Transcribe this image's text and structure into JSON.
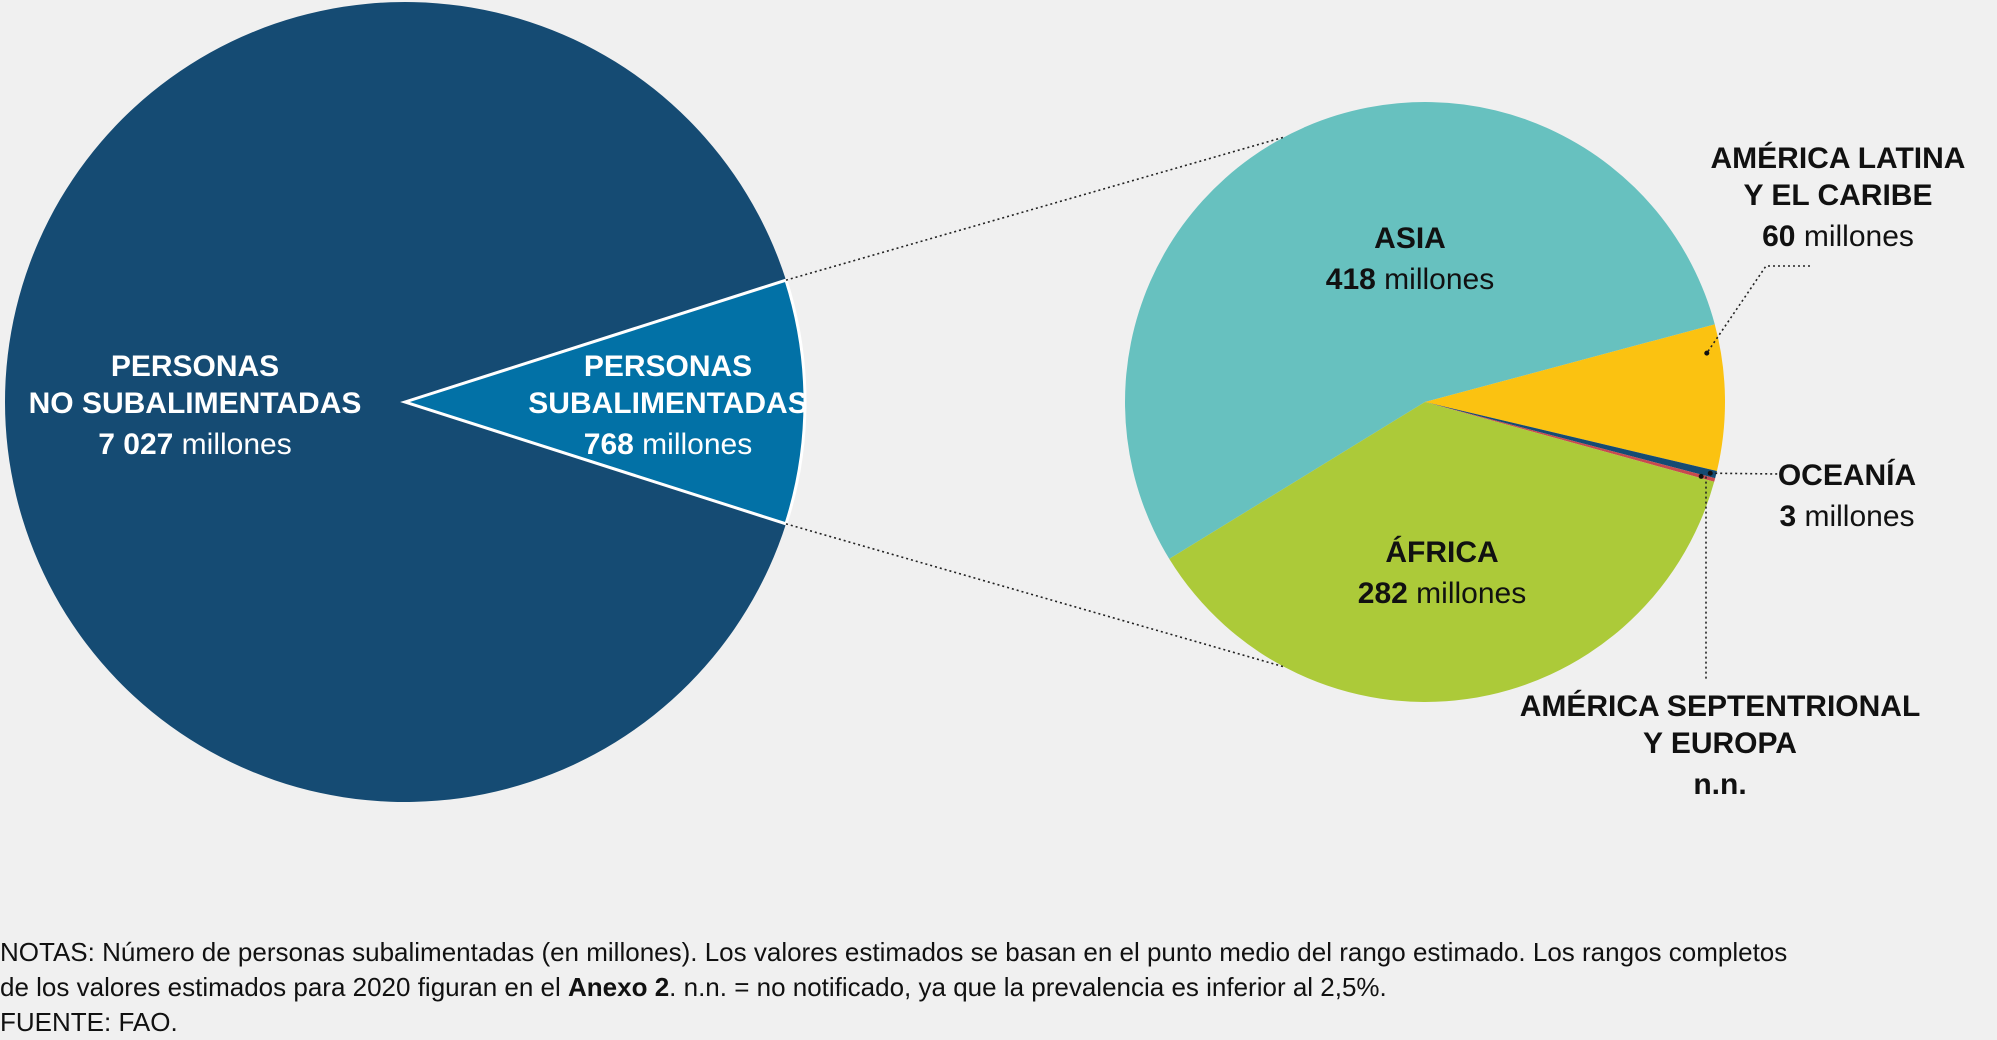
{
  "chart_data": [
    {
      "type": "pie",
      "slices": [
        {
          "label_lines": [
            "PERSONAS",
            "NO SUBALIMENTADAS"
          ],
          "value": 7027,
          "value_text": "7 027",
          "unit": "millones",
          "color": "#154b73"
        },
        {
          "label_lines": [
            "PERSONAS",
            "SUBALIMENTADAS"
          ],
          "value": 768,
          "value_text": "768",
          "unit": "millones",
          "color": "#0271a6"
        }
      ]
    },
    {
      "type": "pie",
      "slices": [
        {
          "label_lines": [
            "ASIA"
          ],
          "value": 418,
          "value_text": "418",
          "unit": "millones",
          "color": "#67c1bf"
        },
        {
          "label_lines": [
            "AMÉRICA LATINA",
            "Y EL CARIBE"
          ],
          "value": 60,
          "value_text": "60",
          "unit": "millones",
          "color": "#fbc211"
        },
        {
          "label_lines": [
            "OCEANÍA"
          ],
          "value": 3,
          "value_text": "3",
          "unit": "millones",
          "color": "#154b73"
        },
        {
          "label_lines": [
            "AMÉRICA SEPTENTRIONAL",
            "Y EUROPA"
          ],
          "value_text": "n.n.",
          "unit": "",
          "color": "#c94a4e"
        },
        {
          "label_lines": [
            "ÁFRICA"
          ],
          "value": 282,
          "value_text": "282",
          "unit": "millones",
          "color": "#acca39"
        }
      ]
    }
  ],
  "notes": {
    "line1": "NOTAS: Número de personas subalimentadas (en millones). Los valores estimados se basan en el punto medio del rango estimado. Los rangos completos",
    "line2_pre": "de los valores estimados para 2020 figuran en el ",
    "line2_bold": "Anexo 2",
    "line2_post": ". n.n. = no notificado, ya que la prevalencia es inferior al 2,5%.",
    "source": "FUENTE: FAO."
  }
}
